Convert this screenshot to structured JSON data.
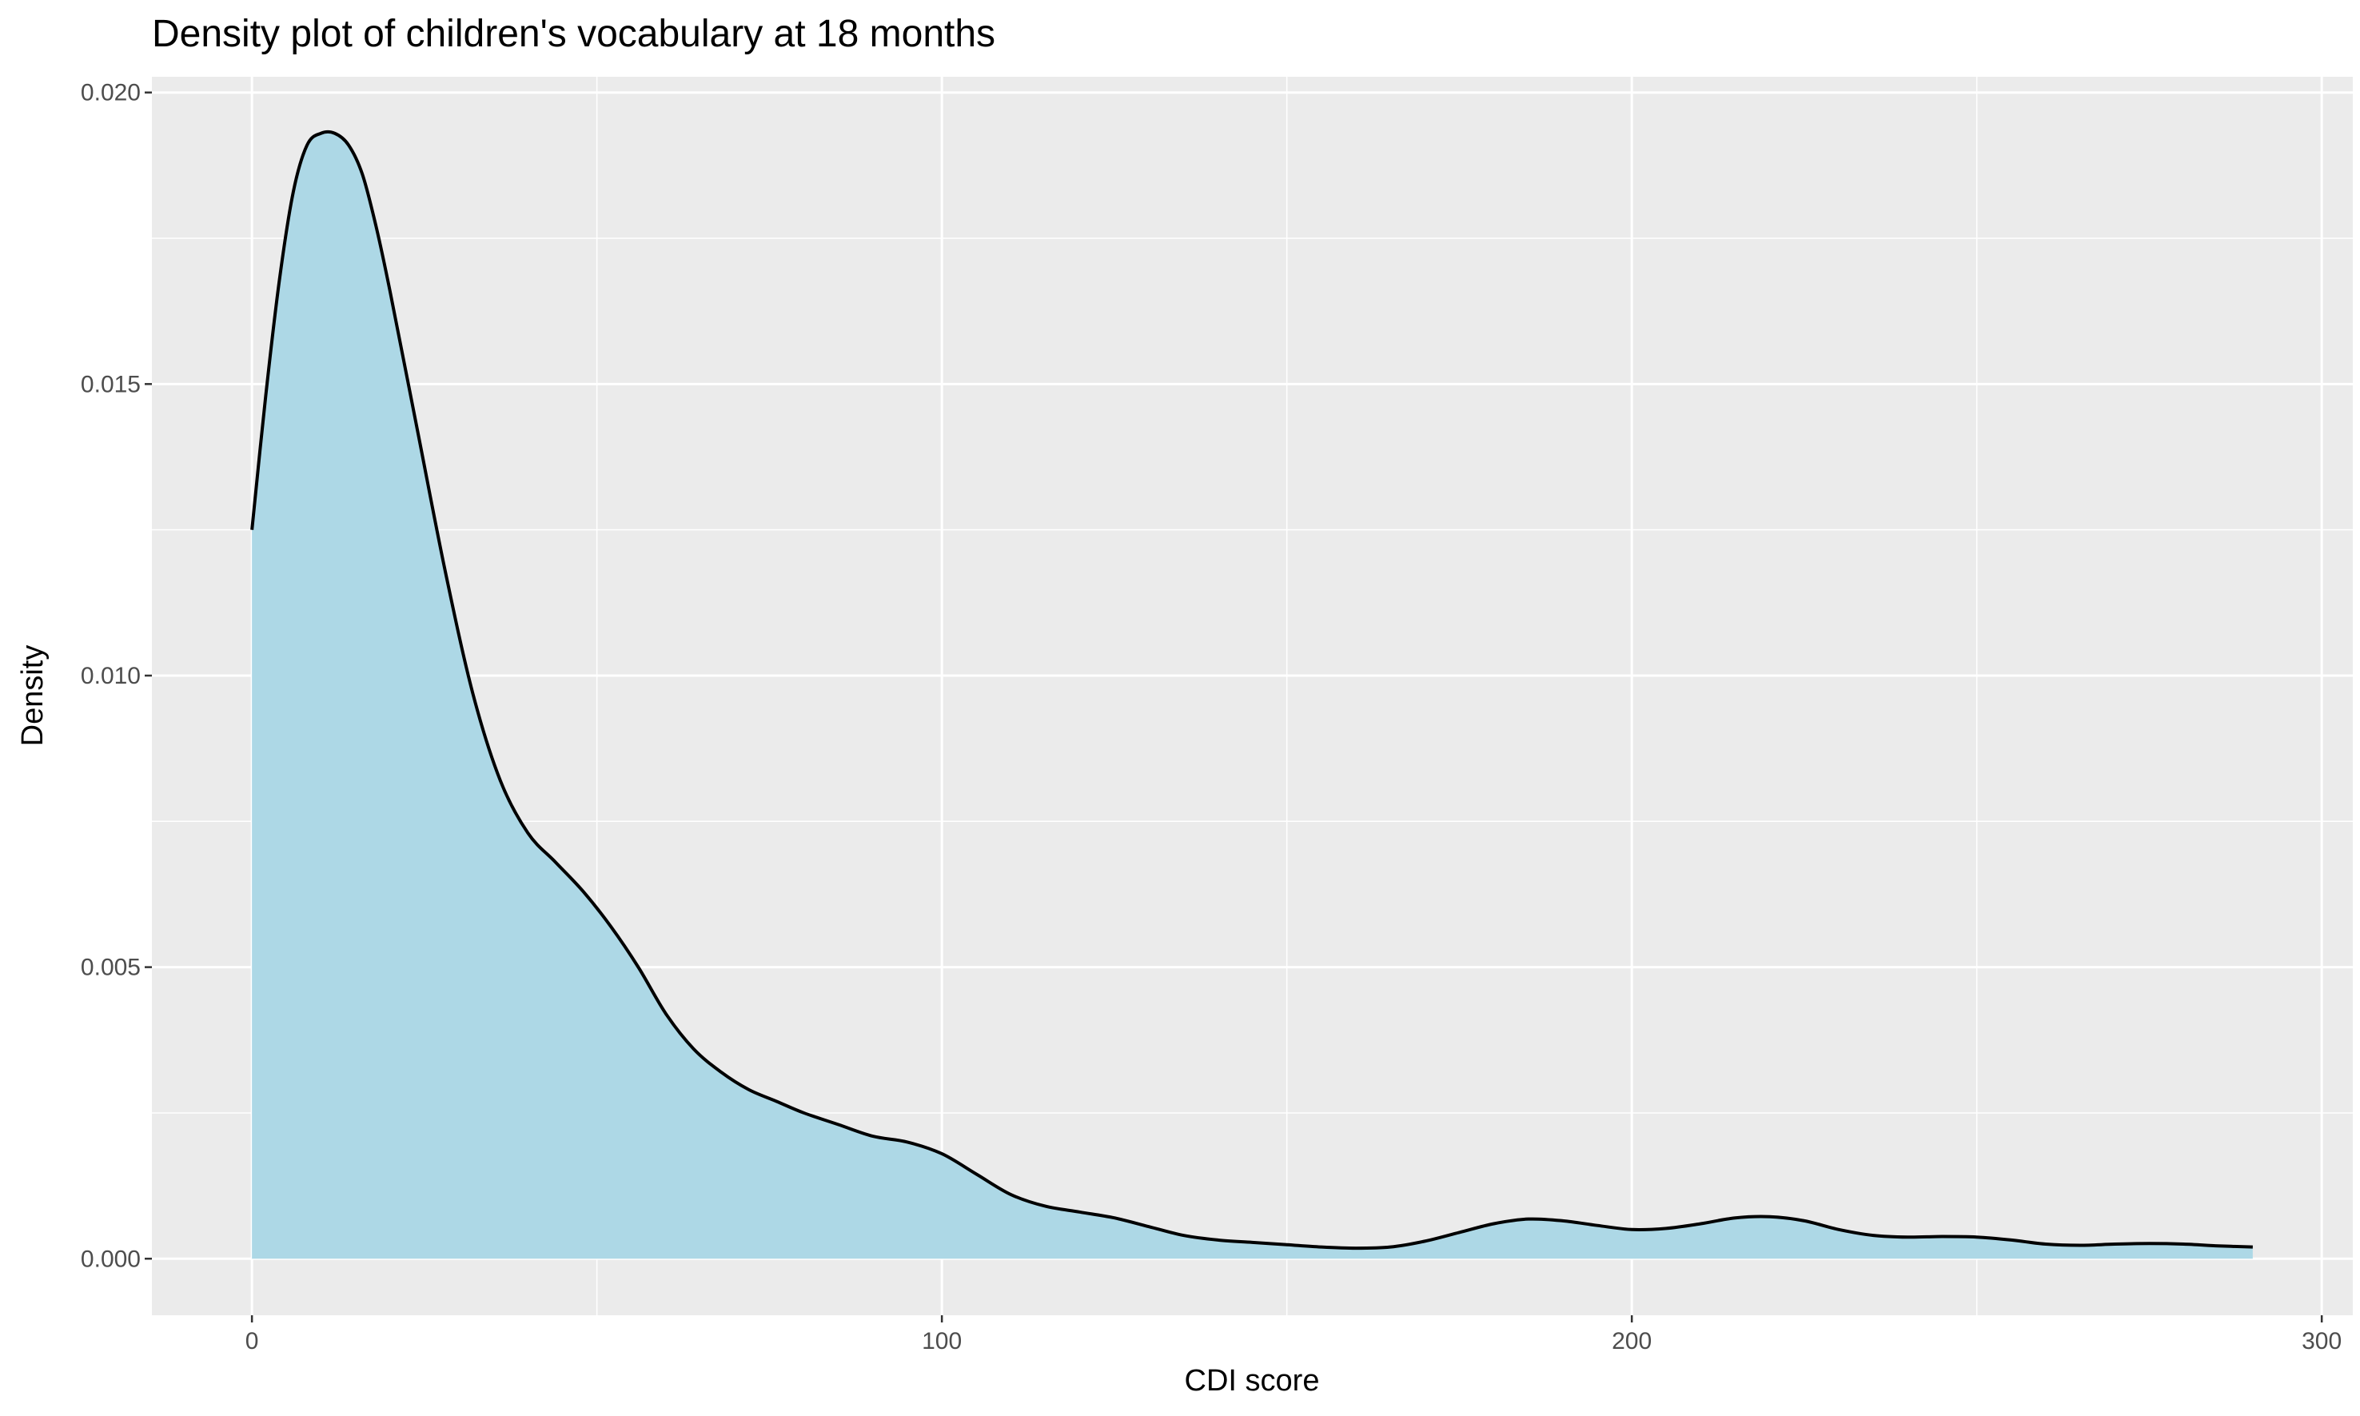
{
  "chart_data": {
    "type": "area",
    "title": "Density plot of children's vocabulary at 18 months",
    "xlabel": "CDI score",
    "ylabel": "Density",
    "xlim": [
      -14.5,
      304.5
    ],
    "ylim": [
      -0.00097,
      0.02027
    ],
    "x_ticks": [
      0,
      100,
      200,
      300
    ],
    "x_tick_labels": [
      "0",
      "100",
      "200",
      "300"
    ],
    "y_ticks": [
      0.0,
      0.005,
      0.01,
      0.015,
      0.02
    ],
    "y_tick_labels": [
      "0.000",
      "0.005",
      "0.010",
      "0.015",
      "0.020"
    ],
    "grid": true,
    "fill_color": "#add8e6",
    "line_color": "#000000",
    "panel_background": "#ebebeb",
    "series": [
      {
        "x": [
          0,
          2,
          4,
          6,
          8,
          10,
          12,
          14,
          16,
          18,
          20,
          24,
          28,
          32,
          36,
          40,
          44,
          48,
          52,
          56,
          60,
          64,
          68,
          72,
          76,
          80,
          85,
          90,
          95,
          100,
          105,
          110,
          115,
          120,
          125,
          130,
          135,
          140,
          145,
          150,
          155,
          160,
          165,
          170,
          175,
          180,
          185,
          190,
          195,
          200,
          205,
          210,
          215,
          220,
          225,
          230,
          235,
          240,
          245,
          250,
          255,
          260,
          265,
          270,
          275,
          280,
          285,
          290
        ],
        "values": [
          0.0125,
          0.0148,
          0.0168,
          0.0183,
          0.0191,
          0.0193,
          0.0193,
          0.0191,
          0.0186,
          0.0177,
          0.0166,
          0.0142,
          0.0118,
          0.0097,
          0.0082,
          0.0073,
          0.0068,
          0.0063,
          0.0057,
          0.005,
          0.0042,
          0.0036,
          0.0032,
          0.0029,
          0.0027,
          0.0025,
          0.0023,
          0.0021,
          0.002,
          0.0018,
          0.00145,
          0.0011,
          0.0009,
          0.0008,
          0.0007,
          0.00055,
          0.0004,
          0.00032,
          0.00028,
          0.00024,
          0.0002,
          0.00018,
          0.0002,
          0.0003,
          0.00045,
          0.0006,
          0.00068,
          0.00065,
          0.00057,
          0.0005,
          0.00052,
          0.0006,
          0.0007,
          0.00072,
          0.00065,
          0.0005,
          0.0004,
          0.00037,
          0.00038,
          0.00037,
          0.00032,
          0.00025,
          0.00023,
          0.00025,
          0.00026,
          0.00025,
          0.00022,
          0.0002
        ]
      }
    ]
  }
}
